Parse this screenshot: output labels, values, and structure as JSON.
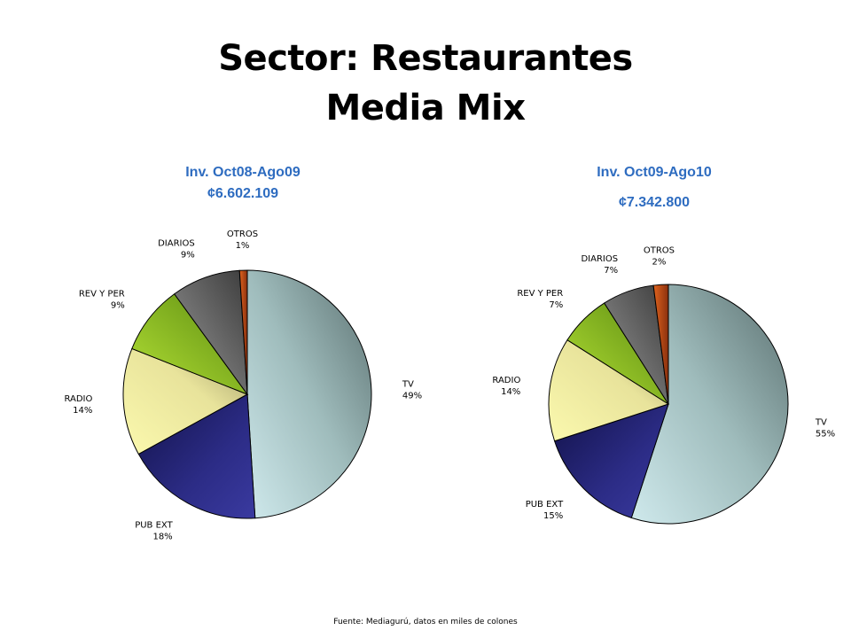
{
  "title_line1": "Sector: Restaurantes",
  "title_line2": "Media Mix",
  "footer": "Fuente: Mediagurú, datos en miles de colones",
  "chart_data": [
    {
      "type": "pie",
      "title": "Inv. Oct08-Ago09",
      "subtitle": "¢6.602.109",
      "categories": [
        "TV",
        "PUB EXT",
        "RADIO",
        "REV Y PER",
        "DIARIOS",
        "OTROS"
      ],
      "values": [
        49,
        18,
        14,
        9,
        9,
        1
      ],
      "labels": [
        "49%",
        "18%",
        "14%",
        "9%",
        "9%",
        "1%"
      ],
      "colors": [
        "#93b3b3",
        "#2a2a7a",
        "#e0dd94",
        "#86b81e",
        "#6e6e6e",
        "#c2501a"
      ]
    },
    {
      "type": "pie",
      "title": "Inv. Oct09-Ago10",
      "subtitle": "¢7.342.800",
      "categories": [
        "TV",
        "PUB EXT",
        "RADIO",
        "REV Y PER",
        "DIARIOS",
        "OTROS"
      ],
      "values": [
        55,
        15,
        14,
        7,
        7,
        2
      ],
      "labels": [
        "55%",
        "15%",
        "14%",
        "7%",
        "7%",
        "2%"
      ],
      "colors": [
        "#93b3b3",
        "#2a2a7a",
        "#e0dd94",
        "#86b81e",
        "#6e6e6e",
        "#c2501a"
      ]
    }
  ]
}
